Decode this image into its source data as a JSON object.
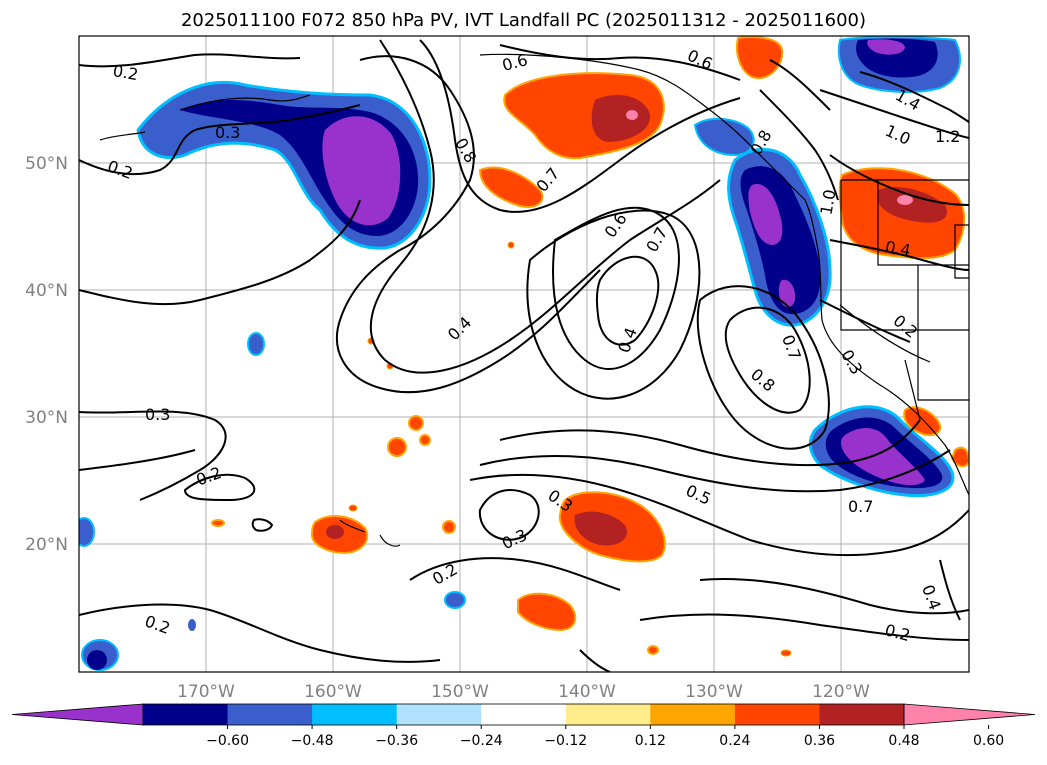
{
  "title": "2025011100 F072 850 hPa PV, IVT Landfall PC (2025011312 - 2025011600)",
  "lat_labels": [
    "50°N",
    "40°N",
    "30°N",
    "20°N"
  ],
  "lon_labels": [
    "170°W",
    "160°W",
    "150°W",
    "140°W",
    "130°W",
    "120°W"
  ],
  "colorbar": {
    "tick_labels": [
      "−0.60",
      "−0.48",
      "−0.36",
      "−0.24",
      "−0.12",
      "0.12",
      "0.24",
      "0.36",
      "0.48",
      "0.60"
    ],
    "colors": [
      "#9932cc",
      "#00008b",
      "#3a5fcd",
      "#00bfff",
      "#b0e2ff",
      "#ffffff",
      "#ffec8b",
      "#ffa500",
      "#ff4500",
      "#b22222",
      "#ff82ab"
    ]
  },
  "contour_labels": [
    "0.2",
    "0.3",
    "0.2",
    "0.6",
    "0.6",
    "0.8",
    "0.7",
    "0.6",
    "0.7",
    "0.4",
    "0.4",
    "0.3",
    "0.2",
    "0.3",
    "0.3",
    "0.2",
    "0.2",
    "0.5",
    "0.7",
    "0.8",
    "0.7",
    "0.3",
    "0.2",
    "0.4",
    "0.2",
    "1.0",
    "1.2",
    "1.4",
    "1.0",
    "0.4",
    "0.8"
  ]
}
